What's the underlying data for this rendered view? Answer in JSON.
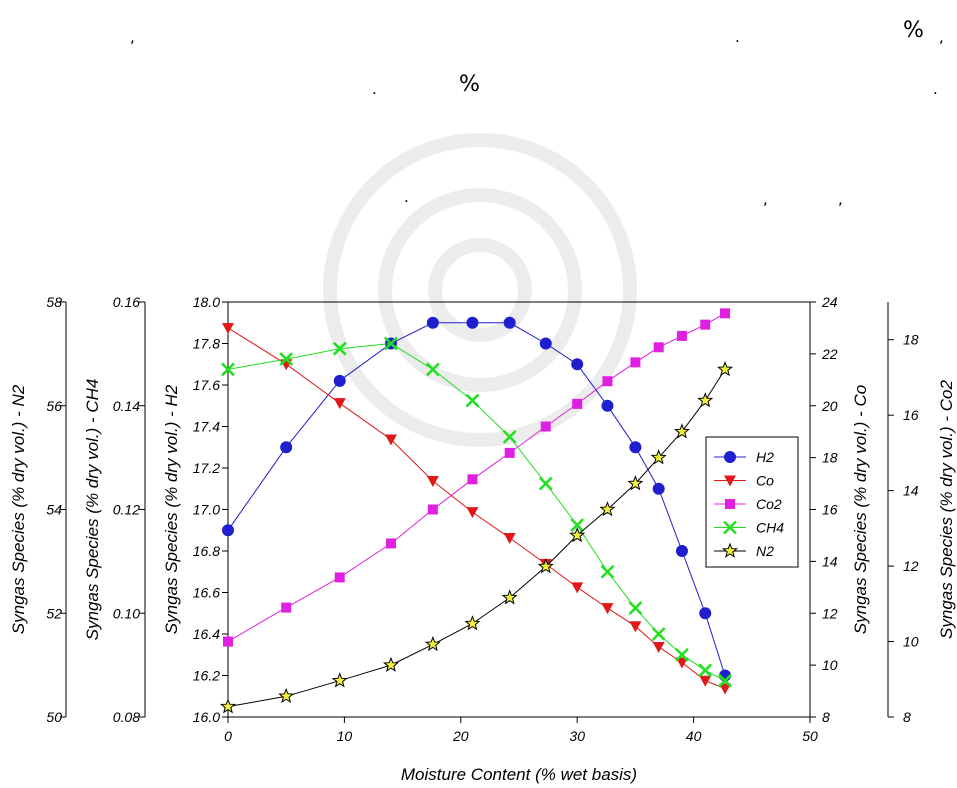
{
  "stray_text": {
    "comma_1": ",",
    "dot_1": ".",
    "percent_1": "%",
    "comma_2": ",",
    "dot_2": ".",
    "percent_2": "%",
    "dot_3": ".",
    "dot_4": ".",
    "comma_3": ",",
    "comma_4": ","
  },
  "chart_data": {
    "type": "line",
    "title": "",
    "xlabel": "Moisture Content (% wet basis)",
    "xlim": [
      0,
      50
    ],
    "xticks": [
      0,
      10,
      20,
      30,
      40,
      50
    ],
    "grid": false,
    "legend_position": "center-right",
    "axes": [
      {
        "id": "n2",
        "label": "Syngas Species (% dry vol.) - N2",
        "side": "left",
        "lim": [
          50,
          58
        ],
        "ticks": [
          "50",
          "52",
          "54",
          "56",
          "58"
        ]
      },
      {
        "id": "ch4",
        "label": "Syngas Species (% dry vol.) - CH4",
        "side": "left",
        "lim": [
          0.08,
          0.16
        ],
        "ticks": [
          "0.08",
          "0.10",
          "0.12",
          "0.14",
          "0.16"
        ]
      },
      {
        "id": "h2",
        "label": "Syngas Species (% dry vol.) - H2",
        "side": "left",
        "lim": [
          16.0,
          18.0
        ],
        "ticks": [
          "16.0",
          "16.2",
          "16.4",
          "16.6",
          "16.8",
          "17.0",
          "17.2",
          "17.4",
          "17.6",
          "17.8",
          "18.0"
        ]
      },
      {
        "id": "co",
        "label": "Syngas Species (% dry vol.) - Co",
        "side": "right",
        "lim": [
          8,
          24
        ],
        "ticks": [
          "8",
          "10",
          "12",
          "14",
          "16",
          "18",
          "20",
          "22",
          "24"
        ]
      },
      {
        "id": "co2",
        "label": "Syngas Species (% dry vol.) - Co2",
        "side": "right",
        "lim": [
          8,
          19
        ],
        "ticks": [
          "8",
          "10",
          "12",
          "14",
          "16",
          "18"
        ]
      }
    ],
    "series": [
      {
        "name": "H2",
        "axis": "h2",
        "color": "#1f1fd0",
        "marker": "circle",
        "x": [
          0,
          5,
          9.6,
          14,
          17.6,
          21,
          24.2,
          27.3,
          30,
          32.6,
          35,
          37,
          39,
          41,
          42.7
        ],
        "y": [
          16.9,
          17.3,
          17.62,
          17.8,
          17.9,
          17.9,
          17.9,
          17.8,
          17.7,
          17.5,
          17.3,
          17.1,
          16.8,
          16.5,
          16.2
        ]
      },
      {
        "name": "Co",
        "axis": "co",
        "color": "#e01818",
        "marker": "triangle-down",
        "x": [
          0,
          5,
          9.6,
          14,
          17.6,
          21,
          24.2,
          27.3,
          30,
          32.6,
          35,
          37,
          39,
          41,
          42.7
        ],
        "y": [
          23,
          21.6,
          20.1,
          18.7,
          17.1,
          15.9,
          14.9,
          13.9,
          13.0,
          12.2,
          11.5,
          10.7,
          10.1,
          9.4,
          9.1
        ]
      },
      {
        "name": "Co2",
        "axis": "co2",
        "color": "#e020e0",
        "marker": "square",
        "x": [
          0,
          5,
          9.6,
          14,
          17.6,
          21,
          24.2,
          27.3,
          30,
          32.6,
          35,
          37,
          39,
          41,
          42.7
        ],
        "y": [
          10.0,
          10.9,
          11.7,
          12.6,
          13.5,
          14.3,
          15.0,
          15.7,
          16.3,
          16.9,
          17.4,
          17.8,
          18.1,
          18.4,
          18.7
        ]
      },
      {
        "name": "CH4",
        "axis": "ch4",
        "color": "#20e020",
        "marker": "x",
        "x": [
          0,
          5,
          9.6,
          14,
          17.6,
          21,
          24.2,
          27.3,
          30,
          32.6,
          35,
          37,
          39,
          41,
          42.7
        ],
        "y": [
          0.147,
          0.149,
          0.151,
          0.152,
          0.147,
          0.141,
          0.134,
          0.125,
          0.117,
          0.108,
          0.101,
          0.096,
          0.092,
          0.089,
          0.087
        ]
      },
      {
        "name": "N2",
        "axis": "n2",
        "color": "#000000",
        "marker": "star",
        "x": [
          0,
          5,
          9.6,
          14,
          17.6,
          21,
          24.2,
          27.3,
          30,
          32.6,
          35,
          37,
          39,
          41,
          42.7
        ],
        "y": [
          50.2,
          50.4,
          50.7,
          51.0,
          51.4,
          51.8,
          52.3,
          52.9,
          53.5,
          54.0,
          54.5,
          55.0,
          55.5,
          56.1,
          56.7
        ]
      }
    ]
  }
}
